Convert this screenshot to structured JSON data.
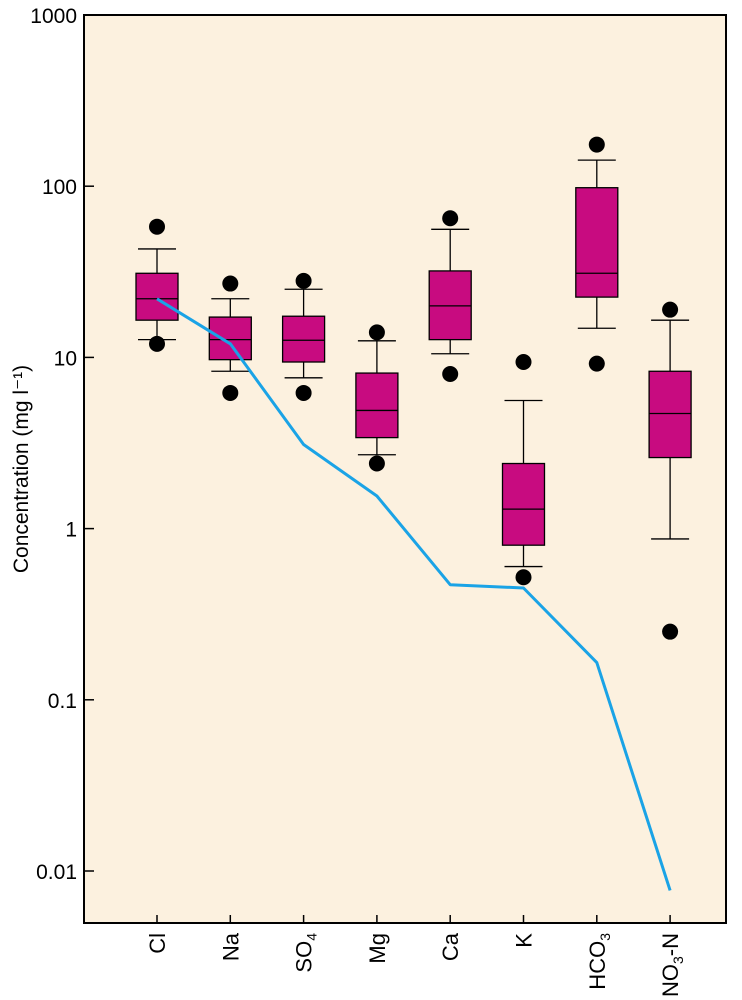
{
  "chart_data": {
    "type": "box",
    "ylabel": "Concentration (mg l⁻¹)",
    "yscale": "log",
    "ylim": [
      0.005,
      1000
    ],
    "y_ticks": [
      {
        "value": 1000,
        "label": "1000"
      },
      {
        "value": 100,
        "label": "100"
      },
      {
        "value": 10,
        "label": "10"
      },
      {
        "value": 1,
        "label": "1"
      },
      {
        "value": 0.1,
        "label": "0.1"
      },
      {
        "value": 0.01,
        "label": "0.01"
      }
    ],
    "grid": false,
    "categories": [
      {
        "label": "Cl",
        "sub": "",
        "suffix": ""
      },
      {
        "label": "Na",
        "sub": "",
        "suffix": ""
      },
      {
        "label": "SO",
        "sub": "4",
        "suffix": ""
      },
      {
        "label": "Mg",
        "sub": "",
        "suffix": ""
      },
      {
        "label": "Ca",
        "sub": "",
        "suffix": ""
      },
      {
        "label": "K",
        "sub": "",
        "suffix": ""
      },
      {
        "label": "HCO",
        "sub": "3",
        "suffix": ""
      },
      {
        "label": "NO",
        "sub": "3",
        "suffix": "-N"
      }
    ],
    "boxes": [
      {
        "whisker_low": 12.7,
        "q1": 16.5,
        "median": 22,
        "q3": 31,
        "whisker_high": 43,
        "outliers": [
          12,
          58
        ]
      },
      {
        "whisker_low": 8.3,
        "q1": 9.7,
        "median": 12.7,
        "q3": 17.2,
        "whisker_high": 22,
        "outliers": [
          6.2,
          27
        ]
      },
      {
        "whisker_low": 7.6,
        "q1": 9.4,
        "median": 12.6,
        "q3": 17.4,
        "whisker_high": 25,
        "outliers": [
          6.2,
          28
        ]
      },
      {
        "whisker_low": 2.7,
        "q1": 3.4,
        "median": 4.9,
        "q3": 8.1,
        "whisker_high": 12.5,
        "outliers": [
          2.4,
          14
        ]
      },
      {
        "whisker_low": 10.5,
        "q1": 12.7,
        "median": 20,
        "q3": 32,
        "whisker_high": 56,
        "outliers": [
          8,
          65
        ]
      },
      {
        "whisker_low": 0.6,
        "q1": 0.8,
        "median": 1.3,
        "q3": 2.4,
        "whisker_high": 5.6,
        "outliers": [
          0.52,
          9.4
        ]
      },
      {
        "whisker_low": 14.8,
        "q1": 22.5,
        "median": 31,
        "q3": 98,
        "whisker_high": 142,
        "outliers": [
          9.2,
          175
        ]
      },
      {
        "whisker_low": 0.87,
        "q1": 2.6,
        "median": 4.7,
        "q3": 8.3,
        "whisker_high": 16.5,
        "outliers": [
          0.25,
          19
        ]
      }
    ],
    "line_values": [
      22,
      12,
      3.1,
      1.55,
      0.47,
      0.45,
      0.165,
      0.0077
    ],
    "colors": {
      "plot_background": "#fcf1df",
      "box_fill": "#c80b80",
      "line": "#1aa3e6",
      "outlier": "#000000",
      "axis": "#000000"
    }
  }
}
